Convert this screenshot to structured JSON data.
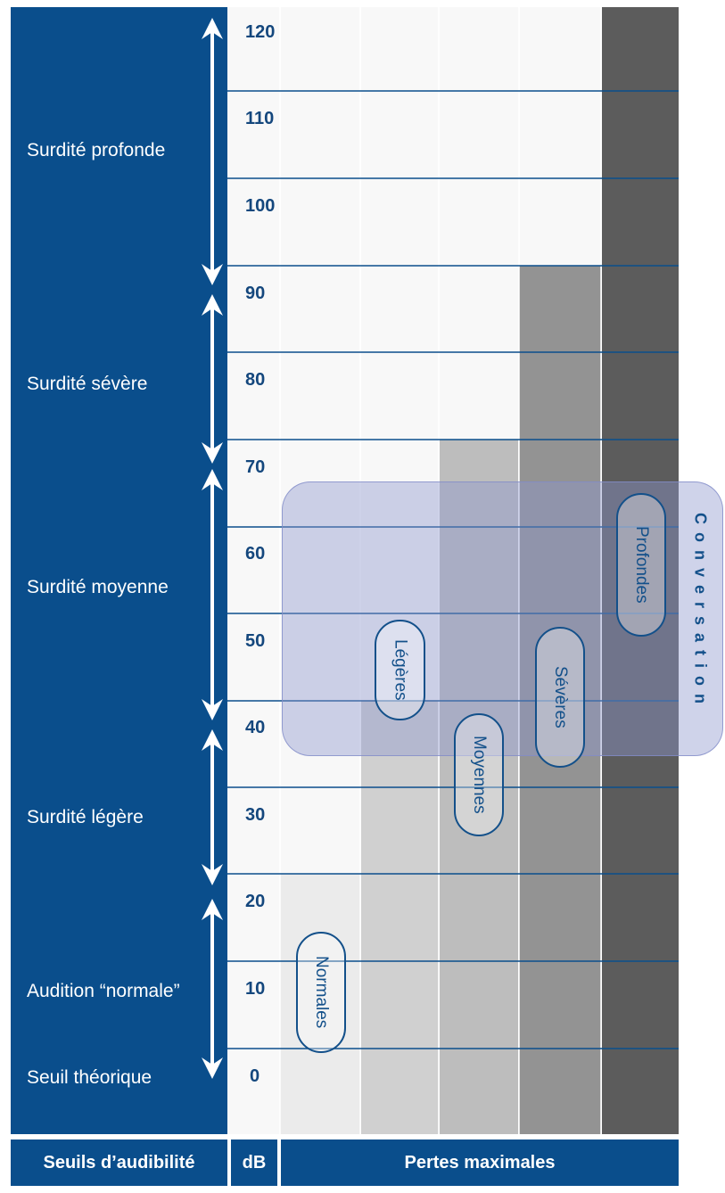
{
  "footer": {
    "thresholds_label": "Seuils d’audibilité",
    "db_label": "dB",
    "losses_label": "Pertes maximales"
  },
  "categories": [
    {
      "label": "Surdité profonde"
    },
    {
      "label": "Surdité sévère"
    },
    {
      "label": "Surdité moyenne"
    },
    {
      "label": "Surdité légère"
    },
    {
      "label": "Audition “normale”"
    },
    {
      "label": "Seuil théorique"
    }
  ],
  "db_levels": [
    "120",
    "110",
    "100",
    "90",
    "80",
    "70",
    "60",
    "50",
    "40",
    "30",
    "20",
    "10",
    "0"
  ],
  "loss_columns": [
    {
      "label": "Normales",
      "max_db": 20
    },
    {
      "label": "Légères",
      "max_db": 40
    },
    {
      "label": "Moyennes",
      "max_db": 70
    },
    {
      "label": "Sévères",
      "max_db": 90
    },
    {
      "label": "Profondes",
      "max_db": 120
    }
  ],
  "conversation": {
    "label": "Conversation",
    "min_db": 40,
    "max_db": 65
  },
  "colors": {
    "panel_blue": "#0a4e8c",
    "text_blue": "#14477d",
    "normales": "#ebebeb",
    "legeres": "#d0d0d0",
    "moyennes": "#bdbdbd",
    "severes": "#939393",
    "profondes": "#5c5c5c"
  }
}
